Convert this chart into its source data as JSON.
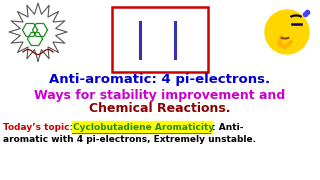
{
  "bg_color": "#ffffff",
  "title_line1": "Anti-aromatic: 4 pi-electrons.",
  "title_line2": "Ways for stability improvement and",
  "title_line3": "Chemical Reactions.",
  "title_color": "#0000cc",
  "subtitle_color": "#cc00cc",
  "line3_color": "#8B0000",
  "bottom_prefix": "Today’s topic: ",
  "bottom_highlight": "Cyclobutadiene Aromaticity",
  "bottom_suffix_1": ": Anti-",
  "bottom_suffix_2": "aromatic with 4 pi-electrons, Extremely unstable.",
  "bottom_prefix_color": "#cc0000",
  "bottom_highlight_color": "#228B22",
  "bottom_highlight_bg": "#ffff00",
  "bottom_suffix_color": "#000000",
  "box_outer_color": "#cc0000",
  "box_inner_color": "#3333aa",
  "figsize": [
    3.2,
    1.8
  ],
  "dpi": 100
}
